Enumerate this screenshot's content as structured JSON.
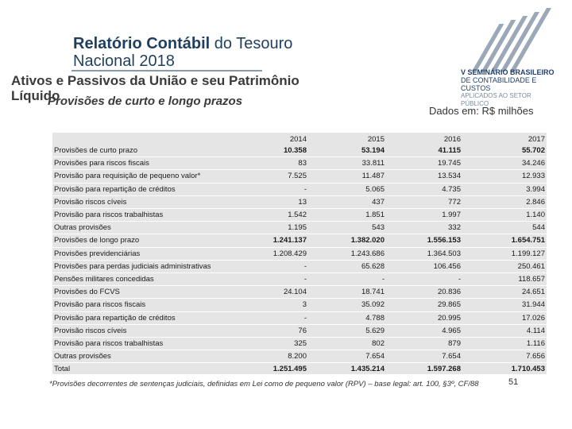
{
  "header": {
    "title_bold": "Relatório Contábil",
    "title_rest": " do Tesouro",
    "title_line2": "Nacional 2018",
    "subtitle_line1": "Ativos e Passivos da União e seu Patrimônio",
    "subtitle_line2": "Líquido",
    "subtitle_overlay": "Provisões de curto e longo prazos",
    "units": "Dados em: R$ milhões"
  },
  "logo": {
    "line1": "V SEMINÁRIO BRASILEIRO",
    "line2": "DE CONTABILIDADE E CUSTOS",
    "line3": "APLICADOS AO SETOR PÚBLICO",
    "colors": [
      "#1f3f6f",
      "#9aa8b8"
    ]
  },
  "table": {
    "years": [
      "2014",
      "2015",
      "2016",
      "2017"
    ],
    "rows": [
      {
        "label": "Provisões de curto prazo",
        "values": [
          "10.358",
          "53.194",
          "41.115",
          "55.702"
        ],
        "bold": true
      },
      {
        "label": "Provisões para riscos fiscais",
        "values": [
          "83",
          "33.811",
          "19.745",
          "34.246"
        ]
      },
      {
        "label": "Provisão para requisição de pequeno valor*",
        "values": [
          "7.525",
          "11.487",
          "13.534",
          "12.933"
        ]
      },
      {
        "label": "Provisão para repartição de créditos",
        "values": [
          "-",
          "5.065",
          "4.735",
          "3.994"
        ]
      },
      {
        "label": "Provisão riscos cíveis",
        "values": [
          "13",
          "437",
          "772",
          "2.846"
        ]
      },
      {
        "label": "Provisão para riscos trabalhistas",
        "values": [
          "1.542",
          "1.851",
          "1.997",
          "1.140"
        ]
      },
      {
        "label": "Outras provisões",
        "values": [
          "1.195",
          "543",
          "332",
          "544"
        ]
      },
      {
        "label": "Provisões de longo prazo",
        "values": [
          "1.241.137",
          "1.382.020",
          "1.556.153",
          "1.654.751"
        ],
        "bold": true
      },
      {
        "label": "Provisões previdenciárias",
        "values": [
          "1.208.429",
          "1.243.686",
          "1.364.503",
          "1.199.127"
        ]
      },
      {
        "label": "Provisões para perdas judiciais administrativas",
        "values": [
          "-",
          "65.628",
          "106.456",
          "250.461"
        ]
      },
      {
        "label": "Pensões militares concedidas",
        "values": [
          "-",
          "-",
          "-",
          "118.657"
        ]
      },
      {
        "label": "Provisões do FCVS",
        "values": [
          "24.104",
          "18.741",
          "20.836",
          "24.651"
        ]
      },
      {
        "label": "Provisão para riscos fiscais",
        "values": [
          "3",
          "35.092",
          "29.865",
          "31.944"
        ]
      },
      {
        "label": "Provisão para repartição de créditos",
        "values": [
          "-",
          "4.788",
          "20.995",
          "17.026"
        ]
      },
      {
        "label": "Provisão riscos cíveis",
        "values": [
          "76",
          "5.629",
          "4.965",
          "4.114"
        ]
      },
      {
        "label": "Provisão para riscos trabalhistas",
        "values": [
          "325",
          "802",
          "879",
          "1.116"
        ]
      },
      {
        "label": "Outras provisões",
        "values": [
          "8.200",
          "7.654",
          "7.654",
          "7.656"
        ]
      },
      {
        "label": "Total",
        "values": [
          "1.251.495",
          "1.435.214",
          "1.597.268",
          "1.710.453"
        ],
        "bold": true
      }
    ]
  },
  "footnote": "*Provisões decorrentes de sentenças judiciais, definidas em Lei como de pequeno valor (RPV) – base legal: art. 100, §3º, CF/88",
  "page_number": "51"
}
